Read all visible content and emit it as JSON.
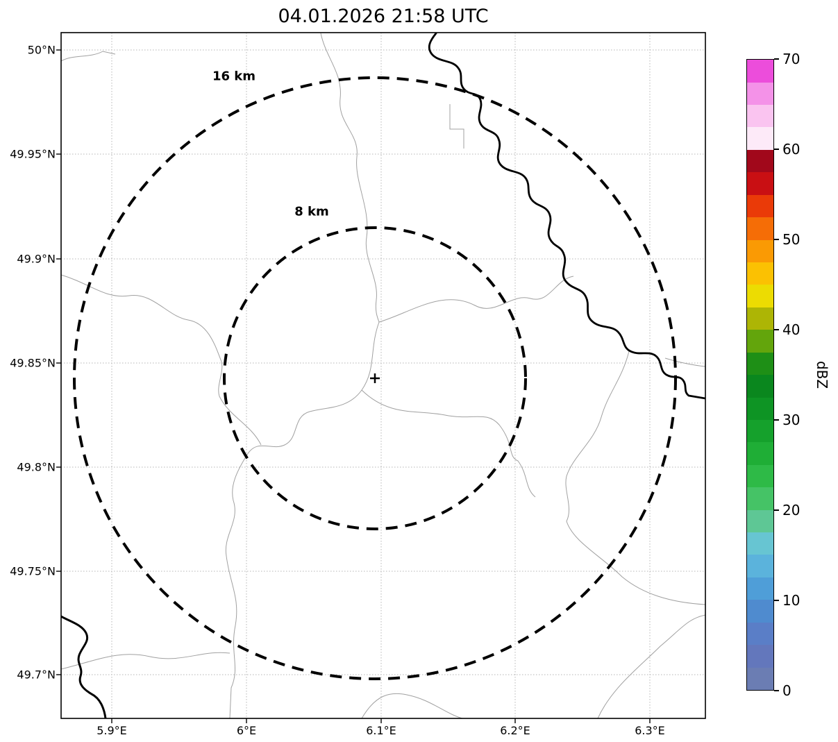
{
  "chart_data": {
    "type": "map",
    "subtype": "weather-radar-range-ring-map",
    "title": "04.01.2026 21:58 UTC",
    "x_axis": {
      "ticks": [
        "5.9°E",
        "6°E",
        "6.1°E",
        "6.2°E",
        "6.3°E"
      ],
      "unit": "degrees longitude east",
      "approx_range": [
        5.862,
        6.341
      ]
    },
    "y_axis": {
      "ticks": [
        "50°N",
        "49.95°N",
        "49.9°N",
        "49.85°N",
        "49.8°N",
        "49.75°N",
        "49.7°N"
      ],
      "unit": "degrees latitude north",
      "approx_range": [
        49.679,
        50.008
      ]
    },
    "grid": "dotted",
    "radar_site": {
      "lon_e": 6.1,
      "lat_n": 49.845,
      "marker_symbol": "+"
    },
    "range_rings": [
      {
        "radius_km": 8,
        "label": "8 km",
        "style": "dashed-black"
      },
      {
        "radius_km": 16,
        "label": "16 km",
        "style": "dashed-black"
      }
    ],
    "precipitation_echoes": "none visible (map empty of reflectivity)",
    "map_features": [
      "thin gray administrative boundaries",
      "thick black river along upper-right and lower-left"
    ],
    "colorbar": {
      "label": "dBZ",
      "min": 0,
      "max": 70,
      "ticks": [
        0,
        10,
        20,
        30,
        40,
        50,
        60,
        70
      ],
      "colors_bottom_to_top": [
        "#6b7db3",
        "#6377bc",
        "#5a7ec7",
        "#4f8bcf",
        "#4f9ed8",
        "#5bb3dc",
        "#67c5d2",
        "#5ec795",
        "#45c366",
        "#2eba47",
        "#1fae36",
        "#15a12c",
        "#0e9424",
        "#0a871e",
        "#1e8f16",
        "#63a50c",
        "#adb505",
        "#ecdc02",
        "#fbc102",
        "#fa9a04",
        "#f56d06",
        "#ea3a08",
        "#c90f13",
        "#a1081b",
        "#fdeaf8",
        "#fac4f0",
        "#f492e8",
        "#ec4ddb"
      ]
    }
  }
}
